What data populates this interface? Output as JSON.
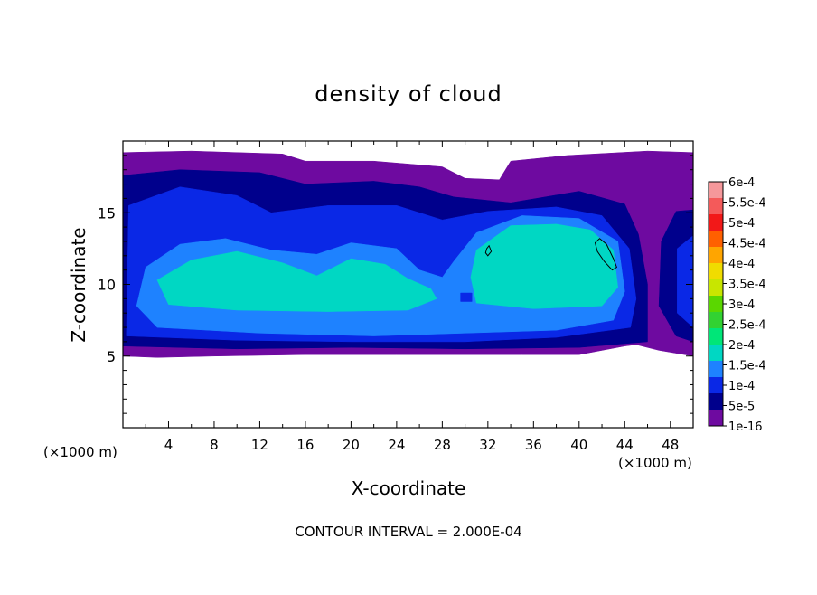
{
  "chart_data": {
    "type": "heatmap",
    "title": "density of cloud",
    "xlabel": "X-coordinate",
    "ylabel": "Z-coordinate",
    "x_unit": "(×1000 m)",
    "footer": "CONTOUR INTERVAL = 2.000E-04",
    "xlim": [
      0,
      50
    ],
    "ylim": [
      0,
      20
    ],
    "x_ticks": [
      4,
      8,
      12,
      16,
      20,
      24,
      28,
      32,
      36,
      40,
      44,
      48
    ],
    "y_ticks": [
      5,
      10,
      15
    ],
    "x_tick_labels": [
      "4",
      "8",
      "12",
      "16",
      "20",
      "24",
      "28",
      "32",
      "36",
      "40",
      "44",
      "48"
    ],
    "y_tick_labels": [
      "5",
      "10",
      "15"
    ],
    "grid": false,
    "colorbar": {
      "labels": [
        "6e-4",
        "5.5e-4",
        "5e-4",
        "4.5e-4",
        "4e-4",
        "3.5e-4",
        "3e-4",
        "2.5e-4",
        "2e-4",
        "1.5e-4",
        "1e-4",
        "5e-5",
        "1e-16"
      ],
      "colors": [
        "#f5989b",
        "#f45a5a",
        "#f21818",
        "#ff6000",
        "#ffa500",
        "#f0dc00",
        "#c8e600",
        "#5ad700",
        "#32d232",
        "#00e678",
        "#00d7c3",
        "#1e82ff",
        "#0a28e6",
        "#00008c",
        "#6e0aa0"
      ]
    },
    "regions": [
      {
        "level": "1e-16",
        "polygon": [
          [
            0,
            19.2
          ],
          [
            6,
            19.3
          ],
          [
            14,
            19.1
          ],
          [
            16,
            18.6
          ],
          [
            22,
            18.6
          ],
          [
            28,
            18.2
          ],
          [
            30,
            17.4
          ],
          [
            33,
            17.3
          ],
          [
            34,
            18.6
          ],
          [
            39,
            19.0
          ],
          [
            46,
            19.3
          ],
          [
            50,
            19.2
          ],
          [
            50,
            5.0
          ],
          [
            47,
            5.4
          ],
          [
            45,
            5.8
          ],
          [
            44,
            5.7
          ],
          [
            40,
            5.1
          ],
          [
            35,
            5.1
          ],
          [
            30,
            5.1
          ],
          [
            24,
            5.1
          ],
          [
            16,
            5.1
          ],
          [
            8,
            5.0
          ],
          [
            3,
            4.9
          ],
          [
            0,
            5.0
          ]
        ]
      },
      {
        "level": "5e-5",
        "polygon": [
          [
            0,
            17.6
          ],
          [
            5,
            18.0
          ],
          [
            12,
            17.8
          ],
          [
            16,
            17.0
          ],
          [
            22,
            17.2
          ],
          [
            26,
            16.8
          ],
          [
            29,
            16.1
          ],
          [
            34,
            15.7
          ],
          [
            40,
            16.5
          ],
          [
            44,
            15.6
          ],
          [
            45.2,
            13.5
          ],
          [
            46,
            10
          ],
          [
            46,
            6
          ],
          [
            40,
            5.6
          ],
          [
            30,
            5.5
          ],
          [
            20,
            5.6
          ],
          [
            10,
            5.5
          ],
          [
            0,
            5.7
          ]
        ]
      },
      {
        "level": "5e-5",
        "polygon": [
          [
            47.2,
            13.0
          ],
          [
            48.5,
            15.1
          ],
          [
            50,
            15.2
          ],
          [
            50,
            6.0
          ],
          [
            48.5,
            6.4
          ],
          [
            47.0,
            8.5
          ]
        ]
      },
      {
        "level": "1e-4",
        "polygon": [
          [
            0.5,
            15.5
          ],
          [
            5,
            16.8
          ],
          [
            10,
            16.2
          ],
          [
            13,
            15.0
          ],
          [
            18,
            15.5
          ],
          [
            24,
            15.5
          ],
          [
            28,
            14.5
          ],
          [
            32,
            15.1
          ],
          [
            38,
            15.4
          ],
          [
            42,
            14.8
          ],
          [
            44.4,
            12.5
          ],
          [
            45,
            9
          ],
          [
            44.5,
            7
          ],
          [
            38,
            6.3
          ],
          [
            30,
            6.0
          ],
          [
            20,
            6.0
          ],
          [
            10,
            6.1
          ],
          [
            0.3,
            6.4
          ]
        ]
      },
      {
        "level": "1e-4",
        "polygon": [
          [
            48.6,
            12.5
          ],
          [
            50,
            13.4
          ],
          [
            50,
            7.0
          ],
          [
            48.6,
            8.0
          ]
        ]
      },
      {
        "level": "1.5e-4",
        "polygon": [
          [
            2,
            11.2
          ],
          [
            5,
            12.8
          ],
          [
            9,
            13.2
          ],
          [
            13,
            12.4
          ],
          [
            17,
            12.1
          ],
          [
            20,
            12.9
          ],
          [
            24,
            12.5
          ],
          [
            26,
            11.0
          ],
          [
            28,
            10.5
          ],
          [
            29,
            11.6
          ],
          [
            31,
            13.6
          ],
          [
            35,
            14.8
          ],
          [
            40,
            14.6
          ],
          [
            43.4,
            13.0
          ],
          [
            44.0,
            9.5
          ],
          [
            43,
            7.5
          ],
          [
            38,
            6.8
          ],
          [
            30,
            6.6
          ],
          [
            22,
            6.4
          ],
          [
            12,
            6.6
          ],
          [
            3,
            7.0
          ],
          [
            1.2,
            8.5
          ]
        ]
      },
      {
        "level": "2e-4",
        "polygon": [
          [
            3,
            10.3
          ],
          [
            6,
            11.7
          ],
          [
            10,
            12.3
          ],
          [
            14,
            11.5
          ],
          [
            17,
            10.6
          ],
          [
            20,
            11.8
          ],
          [
            23,
            11.4
          ],
          [
            25,
            10.4
          ],
          [
            27,
            9.7
          ],
          [
            27.5,
            9.0
          ],
          [
            25,
            8.2
          ],
          [
            18,
            8.1
          ],
          [
            10,
            8.2
          ],
          [
            4,
            8.6
          ]
        ]
      },
      {
        "level": "2e-4",
        "polygon": [
          [
            31,
            12.4
          ],
          [
            34,
            14.1
          ],
          [
            38,
            14.2
          ],
          [
            41,
            13.8
          ],
          [
            43,
            12.4
          ],
          [
            43.4,
            9.8
          ],
          [
            42,
            8.5
          ],
          [
            36,
            8.3
          ],
          [
            31,
            8.7
          ],
          [
            30.5,
            10.5
          ]
        ]
      },
      {
        "level": "1e-4",
        "polygon": [
          [
            29.6,
            9.4
          ],
          [
            30.6,
            9.4
          ],
          [
            30.6,
            8.8
          ],
          [
            29.6,
            8.8
          ]
        ]
      }
    ],
    "contours": [
      {
        "level": "2e-4",
        "polygon": [
          [
            41.4,
            12.9
          ],
          [
            41.8,
            13.2
          ],
          [
            42.4,
            12.8
          ],
          [
            43.0,
            11.8
          ],
          [
            43.3,
            11.2
          ],
          [
            42.9,
            11.0
          ],
          [
            42.2,
            11.6
          ],
          [
            41.6,
            12.3
          ]
        ]
      },
      {
        "level": "2e-4",
        "polygon": [
          [
            31.9,
            12.5
          ],
          [
            32.1,
            12.7
          ],
          [
            32.3,
            12.3
          ],
          [
            32.0,
            12.0
          ],
          [
            31.8,
            12.2
          ]
        ]
      }
    ]
  }
}
